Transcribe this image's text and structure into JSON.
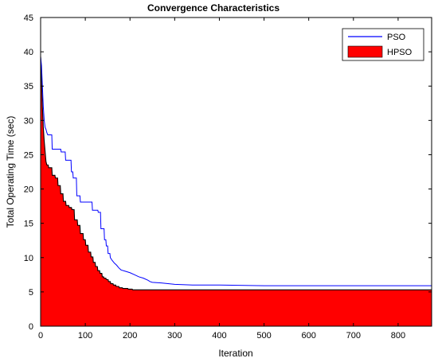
{
  "chart_data": {
    "type": "area",
    "title": "Convergence Characteristics",
    "xlabel": "Iteration",
    "ylabel": "Total Operating Time (sec)",
    "xlim": [
      0,
      875
    ],
    "ylim": [
      0,
      45
    ],
    "xticks": [
      "0",
      "100",
      "200",
      "300",
      "400",
      "500",
      "600",
      "700",
      "800"
    ],
    "yticks": [
      "0",
      "5",
      "10",
      "15",
      "20",
      "25",
      "30",
      "35",
      "40",
      "45"
    ],
    "grid": false,
    "legend_position": "top-right",
    "series": [
      {
        "name": "PSO",
        "style": "line",
        "color": "#0000ff",
        "x": [
          0,
          2,
          4,
          6,
          8,
          10,
          12,
          14,
          16,
          18,
          25,
          26,
          45,
          46,
          55,
          56,
          68,
          69,
          72,
          73,
          80,
          81,
          88,
          89,
          97,
          98,
          115,
          116,
          128,
          129,
          134,
          135,
          142,
          143,
          146,
          147,
          150,
          151,
          155,
          156,
          160,
          165,
          170,
          175,
          180,
          190,
          200,
          210,
          220,
          230,
          240,
          245,
          250,
          270,
          300,
          340,
          400,
          500,
          600,
          700,
          800,
          875
        ],
        "y": [
          39.3,
          38.0,
          35.0,
          32.0,
          30.0,
          29.0,
          28.7,
          28.2,
          27.9,
          27.9,
          27.9,
          25.8,
          25.8,
          25.4,
          25.4,
          24.2,
          24.2,
          22.5,
          22.5,
          21.6,
          21.6,
          19.0,
          19.0,
          18.1,
          18.1,
          18.1,
          18.1,
          16.9,
          16.9,
          16.6,
          16.6,
          14.2,
          14.2,
          12.6,
          12.6,
          11.7,
          11.7,
          10.6,
          10.6,
          10.0,
          9.6,
          9.2,
          8.9,
          8.5,
          8.2,
          8.0,
          7.8,
          7.5,
          7.2,
          7.0,
          6.7,
          6.5,
          6.4,
          6.3,
          6.1,
          6.0,
          6.0,
          5.9,
          5.9,
          5.9,
          5.9,
          5.9
        ]
      },
      {
        "name": "HPSO",
        "style": "area",
        "color": "#ff0000",
        "x": [
          0,
          2,
          4,
          6,
          8,
          10,
          12,
          14,
          17,
          18,
          25,
          26,
          32,
          33,
          38,
          39,
          44,
          45,
          50,
          51,
          56,
          57,
          63,
          64,
          69,
          70,
          75,
          76,
          82,
          83,
          88,
          89,
          95,
          96,
          100,
          101,
          106,
          107,
          112,
          113,
          117,
          118,
          122,
          123,
          127,
          128,
          132,
          133,
          137,
          138,
          141,
          142,
          146,
          147,
          151,
          152,
          156,
          157,
          162,
          163,
          168,
          169,
          175,
          176,
          183,
          184,
          195,
          196,
          205,
          206,
          300,
          400,
          500,
          600,
          700,
          800,
          875
        ],
        "y": [
          39.3,
          36.0,
          32.0,
          29.0,
          27.0,
          25.5,
          24.0,
          23.5,
          23.5,
          23.1,
          23.1,
          22.0,
          22.0,
          21.6,
          21.6,
          20.5,
          20.5,
          19.3,
          19.3,
          18.2,
          18.2,
          17.6,
          17.6,
          17.3,
          17.3,
          17.0,
          17.0,
          15.5,
          15.5,
          14.7,
          14.7,
          13.5,
          13.5,
          12.6,
          12.6,
          11.8,
          11.8,
          10.8,
          10.8,
          10.1,
          10.1,
          9.3,
          9.3,
          8.7,
          8.7,
          8.1,
          8.1,
          7.7,
          7.7,
          7.2,
          7.2,
          7.0,
          7.0,
          6.8,
          6.8,
          6.5,
          6.5,
          6.2,
          6.2,
          6.0,
          6.0,
          5.8,
          5.8,
          5.6,
          5.6,
          5.5,
          5.5,
          5.4,
          5.4,
          5.3,
          5.3,
          5.3,
          5.3,
          5.3,
          5.3,
          5.3,
          5.3
        ]
      }
    ]
  }
}
